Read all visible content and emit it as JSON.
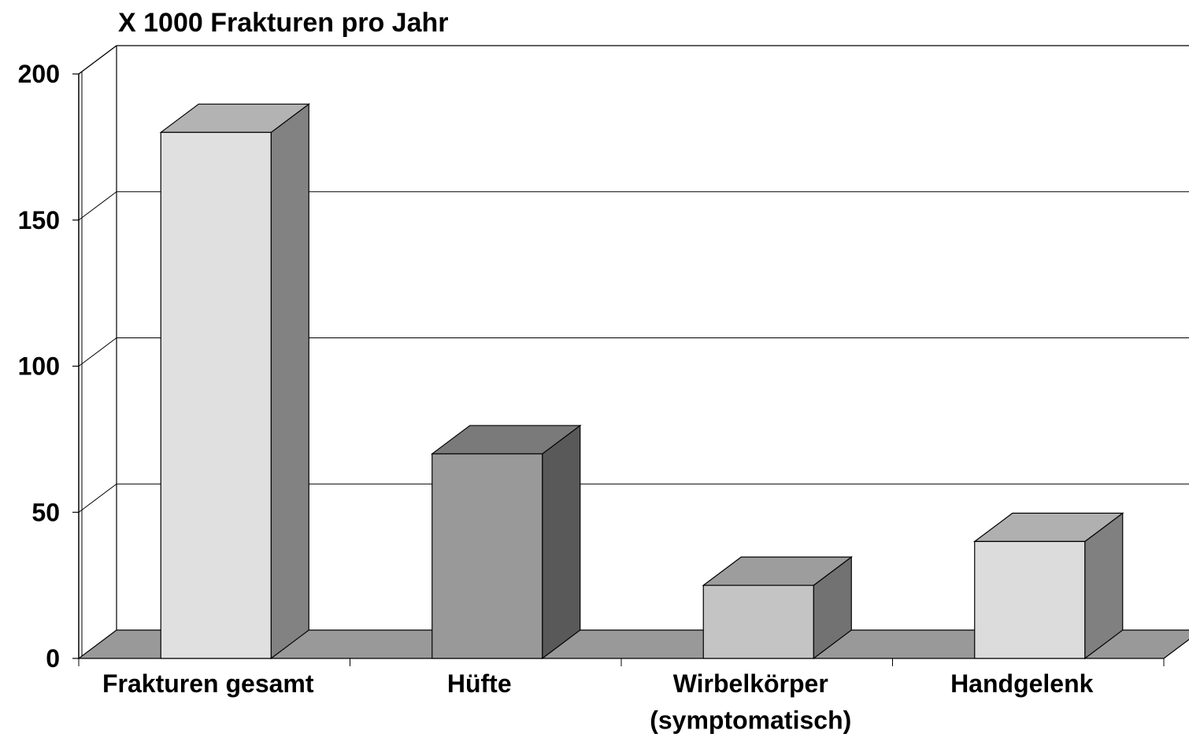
{
  "chart_data": {
    "type": "bar3d",
    "title": "X 1000 Frakturen pro Jahr",
    "categories": [
      "Frakturen gesamt",
      "Hüfte",
      "Wirbelkörper\n(symptomatisch)",
      "Handgelenk"
    ],
    "values": [
      180,
      70,
      25,
      40
    ],
    "colors": [
      "#e0e0e0",
      "#999999",
      "#c4c4c4",
      "#dcdcdc"
    ],
    "ylim": [
      0,
      200
    ],
    "yticks": [
      0,
      50,
      100,
      150,
      200
    ],
    "grid": true
  }
}
